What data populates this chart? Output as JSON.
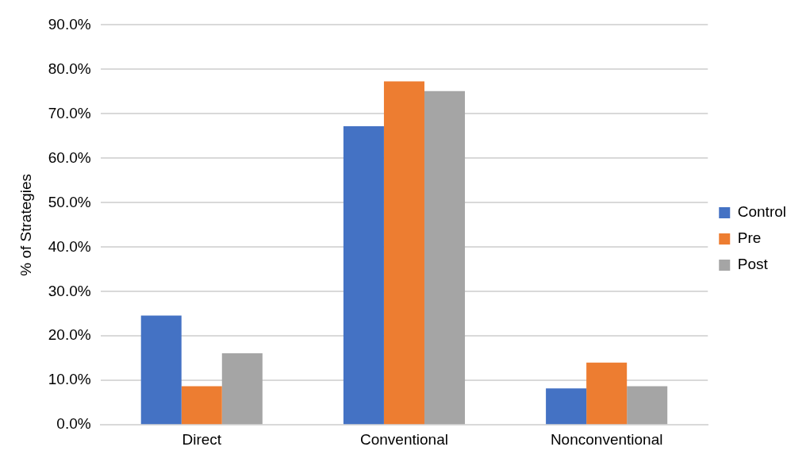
{
  "chart_data": {
    "type": "bar",
    "ylabel": "% of Strategies",
    "categories": [
      "Direct",
      "Conventional",
      "Nonconventional"
    ],
    "series": [
      {
        "name": "Control",
        "color": "#4472c4",
        "values": [
          24.6,
          67.2,
          8.2
        ]
      },
      {
        "name": "Pre",
        "color": "#ed7d31",
        "values": [
          8.7,
          77.3,
          14.0
        ]
      },
      {
        "name": "Post",
        "color": "#a5a5a5",
        "values": [
          16.1,
          75.1,
          8.7
        ]
      }
    ],
    "ylim": [
      0,
      90
    ],
    "yticks": [
      {
        "value": 0,
        "label": "0.0%"
      },
      {
        "value": 10,
        "label": "10.0%"
      },
      {
        "value": 20,
        "label": "20.0%"
      },
      {
        "value": 30,
        "label": "30.0%"
      },
      {
        "value": 40,
        "label": "40.0%"
      },
      {
        "value": 50,
        "label": "50.0%"
      },
      {
        "value": 60,
        "label": "60.0%"
      },
      {
        "value": 70,
        "label": "70.0%"
      },
      {
        "value": 80,
        "label": "80.0%"
      },
      {
        "value": 90,
        "label": "90.0%"
      }
    ],
    "grid": "y",
    "legend": "right"
  }
}
